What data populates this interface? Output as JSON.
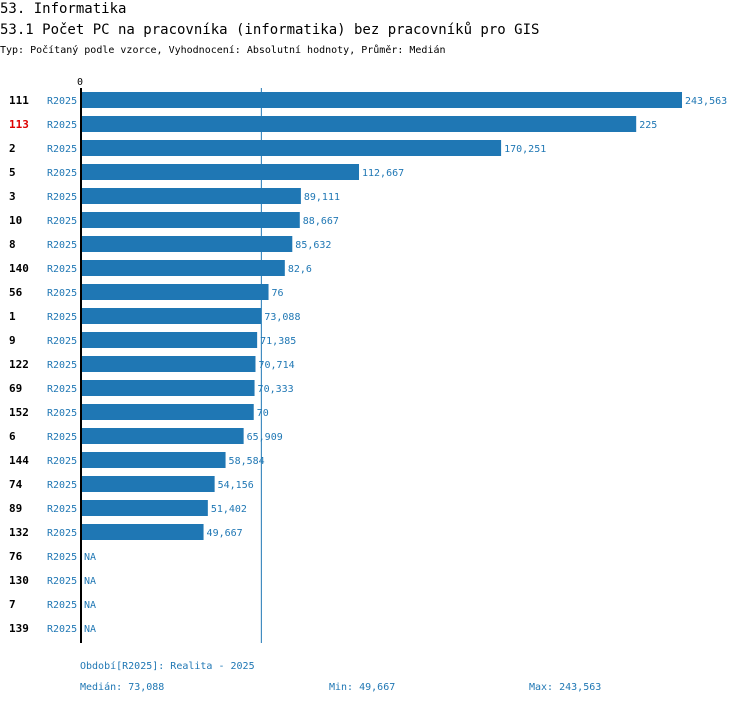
{
  "header": {
    "section_title": "53. Informatika",
    "chart_title": "53.1 Počet PC na pracovníka (informatika) bez pracovníků pro GIS",
    "subtitle": "Typ: Počítaný podle vzorce, Vyhodnocení: Absolutní hodnoty, Průměr: Medián"
  },
  "colors": {
    "bar": "#1f77b4",
    "value_text": "#1f77b4",
    "highlight_id": "#dd0000",
    "axis": "#000000"
  },
  "chart_data": {
    "type": "bar",
    "orientation": "horizontal",
    "axis_zero_label": "0",
    "series_label": "R2025",
    "na_label": "NA",
    "highlight_id": "113",
    "median": 73.088,
    "x_max": 243.563,
    "rows": [
      {
        "id": "111",
        "value": 243.563,
        "label": "243,563"
      },
      {
        "id": "113",
        "value": 225,
        "label": "225"
      },
      {
        "id": "2",
        "value": 170.251,
        "label": "170,251"
      },
      {
        "id": "5",
        "value": 112.667,
        "label": "112,667"
      },
      {
        "id": "3",
        "value": 89.111,
        "label": "89,111"
      },
      {
        "id": "10",
        "value": 88.667,
        "label": "88,667"
      },
      {
        "id": "8",
        "value": 85.632,
        "label": "85,632"
      },
      {
        "id": "140",
        "value": 82.6,
        "label": "82,6"
      },
      {
        "id": "56",
        "value": 76,
        "label": "76"
      },
      {
        "id": "1",
        "value": 73.088,
        "label": "73,088"
      },
      {
        "id": "9",
        "value": 71.385,
        "label": "71,385"
      },
      {
        "id": "122",
        "value": 70.714,
        "label": "70,714"
      },
      {
        "id": "69",
        "value": 70.333,
        "label": "70,333"
      },
      {
        "id": "152",
        "value": 70,
        "label": "70"
      },
      {
        "id": "6",
        "value": 65.909,
        "label": "65,909"
      },
      {
        "id": "144",
        "value": 58.584,
        "label": "58,584"
      },
      {
        "id": "74",
        "value": 54.156,
        "label": "54,156"
      },
      {
        "id": "89",
        "value": 51.402,
        "label": "51,402"
      },
      {
        "id": "132",
        "value": 49.667,
        "label": "49,667"
      },
      {
        "id": "76",
        "value": null,
        "label": "NA"
      },
      {
        "id": "130",
        "value": null,
        "label": "NA"
      },
      {
        "id": "7",
        "value": null,
        "label": "NA"
      },
      {
        "id": "139",
        "value": null,
        "label": "NA"
      }
    ]
  },
  "footer": {
    "period": "Období[R2025]: Realita - 2025",
    "median_label": "Medián:",
    "median_value": "73,088",
    "min_label": "Min:",
    "min_value": "49,667",
    "max_label": "Max:",
    "max_value": "243,563"
  }
}
